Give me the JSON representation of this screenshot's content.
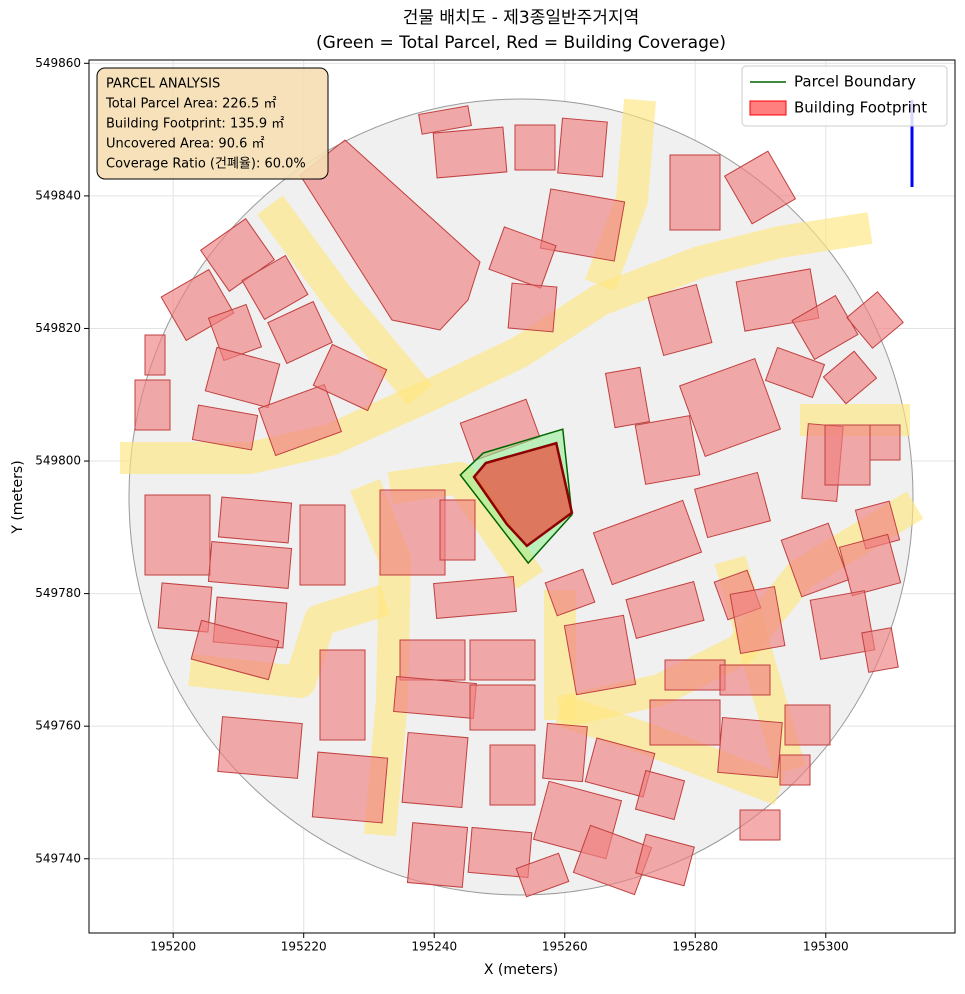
{
  "chart_data": {
    "type": "map",
    "title": "건물 배치도 - 제3종일반주거지역",
    "subtitle": "(Green = Total Parcel, Red = Building Coverage)",
    "x_label": "X (meters)",
    "y_label": "Y (meters)",
    "xlim": [
      195187.1,
      195319.8
    ],
    "ylim": [
      549728.8,
      549860.5
    ],
    "xticks": [
      195200,
      195220,
      195240,
      195260,
      195280,
      195300
    ],
    "yticks": [
      549740,
      549760,
      549780,
      549800,
      549820,
      549840,
      549860
    ],
    "grid": true,
    "legend": "upper right",
    "series": [
      {
        "name": "Parcel Boundary",
        "color": "#006400",
        "fill": "#90ee90",
        "x": [
          195244.0,
          195247.5,
          195259.7,
          195261.1,
          195254.4
        ],
        "y": [
          549797.9,
          549801.2,
          549804.8,
          549791.9,
          549784.6
        ]
      },
      {
        "name": "Building Footprint",
        "color": "#8b0000",
        "fill": "#ff0000",
        "x": [
          195246.1,
          195247.9,
          195258.7,
          195261.1,
          195254.2,
          195251.1
        ],
        "y": [
          549797.6,
          549799.7,
          549802.7,
          549792.2,
          549787.2,
          549790.5
        ]
      }
    ],
    "annotation": [
      "PARCEL ANALYSIS",
      "Total Parcel Area: 226.5 ㎡",
      "Building Footprint: 135.9 ㎡",
      "Uncovered Area: 90.6 ㎡",
      "Coverage Ratio (건폐율): 60.0%"
    ]
  }
}
